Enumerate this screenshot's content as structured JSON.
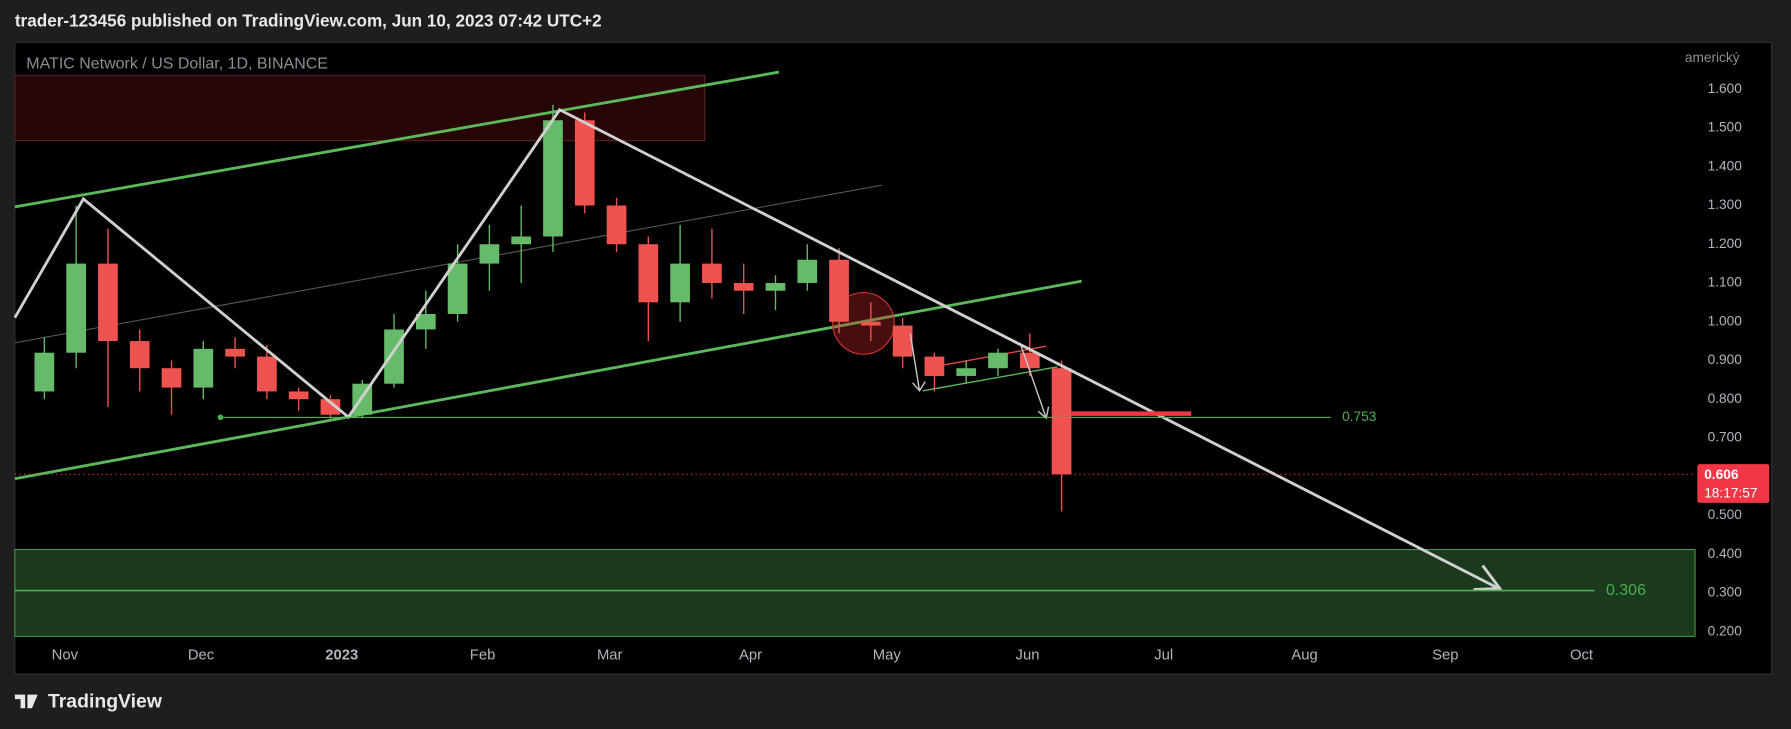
{
  "header": {
    "text": "trader-123456 published on TradingView.com, Jun 10, 2023 07:42 UTC+2"
  },
  "footer": {
    "brand": "TradingView"
  },
  "chart_data": {
    "type": "candlestick",
    "title": "MATIC Network / US Dollar, 1D, BINANCE",
    "axis_label": "americký",
    "x": [
      "2022-10-24",
      "2022-10-31",
      "2022-11-07",
      "2022-11-14",
      "2022-11-21",
      "2022-11-28",
      "2022-12-05",
      "2022-12-12",
      "2022-12-19",
      "2022-12-26",
      "2023-01-02",
      "2023-01-09",
      "2023-01-16",
      "2023-01-23",
      "2023-01-30",
      "2023-02-06",
      "2023-02-13",
      "2023-02-20",
      "2023-02-27",
      "2023-03-06",
      "2023-03-13",
      "2023-03-20",
      "2023-03-27",
      "2023-04-03",
      "2023-04-10",
      "2023-04-17",
      "2023-04-24",
      "2023-05-01",
      "2023-05-08",
      "2023-05-15",
      "2023-05-22",
      "2023-05-29",
      "2023-06-05"
    ],
    "open": [
      0.82,
      0.92,
      1.15,
      0.95,
      0.88,
      0.83,
      0.93,
      0.91,
      0.82,
      0.8,
      0.76,
      0.84,
      0.98,
      1.02,
      1.15,
      1.2,
      1.22,
      1.52,
      1.3,
      1.2,
      1.05,
      1.15,
      1.1,
      1.08,
      1.1,
      1.16,
      1.0,
      0.99,
      0.91,
      0.86,
      0.88,
      0.92,
      0.88
    ],
    "high": [
      0.96,
      1.3,
      1.24,
      0.98,
      0.9,
      0.95,
      0.96,
      0.94,
      0.83,
      0.81,
      0.85,
      1.02,
      1.08,
      1.2,
      1.25,
      1.3,
      1.56,
      1.54,
      1.32,
      1.22,
      1.25,
      1.24,
      1.15,
      1.12,
      1.2,
      1.19,
      1.05,
      1.01,
      0.92,
      0.9,
      0.93,
      0.97,
      0.9
    ],
    "low": [
      0.8,
      0.88,
      0.78,
      0.82,
      0.76,
      0.8,
      0.88,
      0.8,
      0.77,
      0.75,
      0.75,
      0.83,
      0.93,
      1.0,
      1.08,
      1.1,
      1.18,
      1.28,
      1.18,
      0.95,
      1.0,
      1.06,
      1.02,
      1.03,
      1.08,
      0.97,
      0.95,
      0.88,
      0.82,
      0.84,
      0.86,
      0.86,
      0.51
    ],
    "close": [
      0.92,
      1.15,
      0.95,
      0.88,
      0.83,
      0.93,
      0.91,
      0.82,
      0.8,
      0.76,
      0.84,
      0.98,
      1.02,
      1.15,
      1.2,
      1.22,
      1.52,
      1.3,
      1.2,
      1.05,
      1.15,
      1.1,
      1.08,
      1.1,
      1.16,
      1.0,
      0.99,
      0.91,
      0.86,
      0.88,
      0.92,
      0.88,
      0.606
    ],
    "up_color": "#66bb6a",
    "down_color": "#ef5350",
    "xlim": [
      "2022-10-21",
      "2023-10-26"
    ],
    "xticks": [
      {
        "value": "2022-11-01",
        "label": "Nov"
      },
      {
        "value": "2022-12-01",
        "label": "Dec"
      },
      {
        "value": "2023-01-01",
        "label": "2023"
      },
      {
        "value": "2023-02-01",
        "label": "Feb"
      },
      {
        "value": "2023-03-01",
        "label": "Mar"
      },
      {
        "value": "2023-04-01",
        "label": "Apr"
      },
      {
        "value": "2023-05-01",
        "label": "May"
      },
      {
        "value": "2023-06-01",
        "label": "Jun"
      },
      {
        "value": "2023-07-01",
        "label": "Jul"
      },
      {
        "value": "2023-08-01",
        "label": "Aug"
      },
      {
        "value": "2023-09-01",
        "label": "Sep"
      },
      {
        "value": "2023-10-01",
        "label": "Oct"
      }
    ],
    "ylim": [
      0.179,
      1.721
    ],
    "yticks": [
      {
        "value": 0.2,
        "label": "0.200"
      },
      {
        "value": 0.3,
        "label": "0.300"
      },
      {
        "value": 0.4,
        "label": "0.400"
      },
      {
        "value": 0.5,
        "label": "0.500"
      },
      {
        "value": 0.7,
        "label": "0.700"
      },
      {
        "value": 0.8,
        "label": "0.800"
      },
      {
        "value": 0.9,
        "label": "0.900"
      },
      {
        "value": 1.0,
        "label": "1.000"
      },
      {
        "value": 1.1,
        "label": "1.100"
      },
      {
        "value": 1.2,
        "label": "1.200"
      },
      {
        "value": 1.3,
        "label": "1.300"
      },
      {
        "value": 1.4,
        "label": "1.400"
      },
      {
        "value": 1.5,
        "label": "1.500"
      },
      {
        "value": 1.6,
        "label": "1.600"
      }
    ],
    "last_price": 0.606,
    "countdown": "18:17:57",
    "levels": [
      {
        "value": 0.753,
        "color": "#4caf50"
      },
      {
        "value": 0.306,
        "color": "#4caf50"
      }
    ]
  }
}
